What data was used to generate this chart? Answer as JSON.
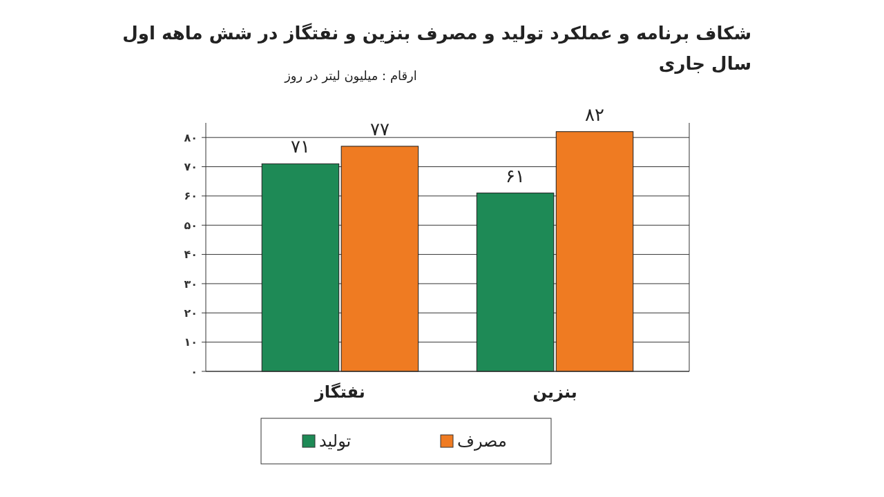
{
  "chart_data": {
    "type": "bar",
    "title": "شکاف برنامه و عملکرد تولید و مصرف بنزین و نفتگاز در شش ماهه اول سال جاری",
    "subtitle": "ارقام : میلیون لیتر در روز",
    "categories": [
      "نفتگاز",
      "بنزین"
    ],
    "series": [
      {
        "name": "تولید",
        "color": "#1e8a56",
        "values": [
          71,
          61
        ],
        "value_labels": [
          "۷۱",
          "۶۱"
        ]
      },
      {
        "name": "مصرف",
        "color": "#ef7b22",
        "values": [
          77,
          82
        ],
        "value_labels": [
          "۷۷",
          "۸۲"
        ]
      }
    ],
    "ylim": [
      0,
      85
    ],
    "yticks": [
      {
        "value": 0,
        "label": "۰"
      },
      {
        "value": 10,
        "label": "۱۰"
      },
      {
        "value": 20,
        "label": "۲۰"
      },
      {
        "value": 30,
        "label": "۳۰"
      },
      {
        "value": 40,
        "label": "۴۰"
      },
      {
        "value": 50,
        "label": "۵۰"
      },
      {
        "value": 60,
        "label": "۶۰"
      },
      {
        "value": 70,
        "label": "۷۰"
      },
      {
        "value": 80,
        "label": "۸۰"
      }
    ],
    "grid": "y",
    "legend": "bottom"
  }
}
